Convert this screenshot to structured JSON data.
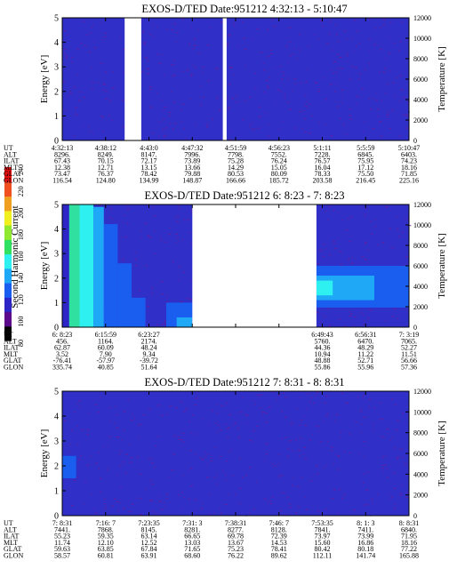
{
  "colors": {
    "background_field": "#3030c8",
    "noise": "#6a1a9a",
    "data_gap": "#ffffff"
  },
  "colorbar": {
    "label": "Second Harmonic Current",
    "ticks": [
      "80",
      "100",
      "120",
      "140",
      "160",
      "180",
      "200",
      "220",
      "240"
    ],
    "range": [
      80,
      240
    ],
    "colors": [
      "#000000",
      "#5a0a8a",
      "#2d25c6",
      "#1a5ef0",
      "#1fa8f5",
      "#2ff0f0",
      "#30e060",
      "#90e830",
      "#f0f020",
      "#f0a020",
      "#f05020",
      "#e01010"
    ]
  },
  "chart_data": [
    {
      "type": "heatmap",
      "title": "EXOS-D/TED   Date:951212  4:32:13 - 5:10:47",
      "ylabel": "Energy [eV]",
      "y2label": "Temperature [K]",
      "ylim": [
        0,
        5
      ],
      "y2lim": [
        0,
        12000
      ],
      "yticks": [
        "0",
        "1",
        "2",
        "3",
        "4",
        "5"
      ],
      "y2ticks": [
        "0",
        "2000",
        "4000",
        "6000",
        "8000",
        "10000",
        "12000"
      ],
      "gaps": [
        [
          0.18,
          0.228
        ],
        [
          0.463,
          0.474
        ]
      ],
      "bands": [],
      "annotation": {
        "labels": [
          "UT",
          "ALT",
          "ILAT",
          "MLT",
          "GLAT",
          "GLON"
        ],
        "columns": [
          [
            "4:32:13",
            "8296.",
            "67.43",
            "12.38",
            "73.47",
            "116.54"
          ],
          [
            "4:38:12",
            "8249.",
            "70.15",
            "12.71",
            "76.37",
            "124.80"
          ],
          [
            "4:43:0",
            "8147.",
            "72.17",
            "13.15",
            "78.42",
            "134.99"
          ],
          [
            "4:47:32",
            "7996.",
            "73.89",
            "13.66",
            "79.88",
            "148.87"
          ],
          [
            "4:51:59",
            "7798.",
            "75.28",
            "14.29",
            "80.53",
            "166.66"
          ],
          [
            "4:56:23",
            "7552.",
            "76.24",
            "15.05",
            "80.09",
            "185.72"
          ],
          [
            "5:1:11",
            "7228.",
            "76.57",
            "16.04",
            "78.33",
            "203.58"
          ],
          [
            "5:5:59",
            "6845.",
            "75.95",
            "17.12",
            "75.50",
            "216.45"
          ],
          [
            "5:10:47",
            "6403.",
            "74.23",
            "18.16",
            "71.85",
            "225.16"
          ]
        ]
      }
    },
    {
      "type": "heatmap",
      "title": "EXOS-D/TED   Date:951212  6: 8:23 - 7: 8:23",
      "ylabel": "Energy [eV]",
      "y2label": "Temperature [K]",
      "ylim": [
        0,
        5
      ],
      "y2lim": [
        0,
        12000
      ],
      "yticks": [
        "0",
        "1",
        "2",
        "3",
        "4",
        "5"
      ],
      "y2ticks": [
        "0",
        "2000",
        "4000",
        "6000",
        "8000",
        "10000",
        "12000"
      ],
      "gaps": [
        [
          0.375,
          0.733
        ]
      ],
      "bands": [
        {
          "x0": 0.0,
          "x1": 0.02,
          "ylo": 0.0,
          "yhi": 5.0,
          "color": "#2d25c6"
        },
        {
          "x0": 0.02,
          "x1": 0.05,
          "ylo": 0.0,
          "yhi": 5.0,
          "color": "#30e0a0"
        },
        {
          "x0": 0.05,
          "x1": 0.09,
          "ylo": 0.0,
          "yhi": 5.0,
          "color": "#2ff0f0"
        },
        {
          "x0": 0.09,
          "x1": 0.12,
          "ylo": 0.0,
          "yhi": 4.9,
          "color": "#1fa8f5"
        },
        {
          "x0": 0.12,
          "x1": 0.16,
          "ylo": 0.0,
          "yhi": 4.2,
          "color": "#1a5ef0"
        },
        {
          "x0": 0.16,
          "x1": 0.2,
          "ylo": 0.0,
          "yhi": 2.6,
          "color": "#1a5ef0"
        },
        {
          "x0": 0.2,
          "x1": 0.24,
          "ylo": 0.0,
          "yhi": 1.2,
          "color": "#1a5ef0"
        },
        {
          "x0": 0.3,
          "x1": 0.375,
          "ylo": 0.0,
          "yhi": 1.0,
          "color": "#1a5ef0"
        },
        {
          "x0": 0.33,
          "x1": 0.375,
          "ylo": 0.0,
          "yhi": 0.4,
          "color": "#1fa8f5"
        },
        {
          "x0": 0.733,
          "x1": 1.0,
          "ylo": 0.8,
          "yhi": 2.5,
          "color": "#1a5ef0"
        },
        {
          "x0": 0.733,
          "x1": 0.9,
          "ylo": 1.1,
          "yhi": 2.1,
          "color": "#1fa8f5"
        },
        {
          "x0": 0.733,
          "x1": 0.78,
          "ylo": 1.3,
          "yhi": 1.9,
          "color": "#2ff0f0"
        }
      ],
      "annotation": {
        "labels": [
          "UT",
          "ALT",
          "ILAT",
          "MLT",
          "GLAT",
          "GLON"
        ],
        "columns": [
          [
            "6: 8:23",
            "456.",
            "62.87",
            "3.52",
            "-76.41",
            "335.74"
          ],
          [
            "6:15:59",
            "1164.",
            "60.09",
            "7.90",
            "-57.97",
            "40.85"
          ],
          [
            "6:23:27",
            "2174.",
            "48.24",
            "9.34",
            "-39.72",
            "51.64"
          ],
          [
            "",
            "",
            "",
            "",
            "",
            ""
          ],
          [
            "",
            "",
            "",
            "",
            "",
            ""
          ],
          [
            "",
            "",
            "",
            "",
            "",
            ""
          ],
          [
            "6:49:43",
            "5760.",
            "44.36",
            "10.94",
            "48.88",
            "55.86"
          ],
          [
            "6:56:31",
            "6470.",
            "48.29",
            "11.22",
            "52.71",
            "55.96"
          ],
          [
            "7: 3:19",
            "7065.",
            "52.27",
            "11.51",
            "56.66",
            "57.36"
          ]
        ]
      }
    },
    {
      "type": "heatmap",
      "title": "EXOS-D/TED   Date:951212  7: 8:31 - 8: 8:31",
      "ylabel": "Energy [eV]",
      "y2label": "Temperature [K]",
      "ylim": [
        0,
        5
      ],
      "y2lim": [
        0,
        12000
      ],
      "yticks": [
        "0",
        "1",
        "2",
        "3",
        "4",
        "5"
      ],
      "y2ticks": [
        "0",
        "2000",
        "4000",
        "6000",
        "8000",
        "10000",
        "12000"
      ],
      "gaps": [],
      "bands": [
        {
          "x0": 0.0,
          "x1": 0.04,
          "ylo": 1.5,
          "yhi": 2.4,
          "color": "#1a5ef0"
        }
      ],
      "annotation": {
        "labels": [
          "UT",
          "ALT",
          "ILAT",
          "MLT",
          "GLAT",
          "GLON"
        ],
        "columns": [
          [
            "7: 8:31",
            "7441.",
            "55.23",
            "11.74",
            "59.63",
            "58.57"
          ],
          [
            "7:16: 7",
            "7868.",
            "59.35",
            "12.10",
            "63.85",
            "60.81"
          ],
          [
            "7:23:35",
            "8145.",
            "63.14",
            "12.52",
            "67.84",
            "63.91"
          ],
          [
            "7:31: 3",
            "8281.",
            "66.65",
            "13.03",
            "71.65",
            "68.60"
          ],
          [
            "7:38:31",
            "8277.",
            "69.78",
            "13.67",
            "75.23",
            "76.22"
          ],
          [
            "7:46: 7",
            "8128.",
            "72.39",
            "14.53",
            "78.41",
            "89.62"
          ],
          [
            "7:53:35",
            "7841.",
            "73.97",
            "15.60",
            "80.42",
            "112.11"
          ],
          [
            "8: 1: 3",
            "7411.",
            "73.99",
            "16.86",
            "80.18",
            "141.74"
          ],
          [
            "8: 8:31",
            "6840.",
            "71.95",
            "18.16",
            "77.22",
            "165.88"
          ]
        ]
      }
    }
  ]
}
